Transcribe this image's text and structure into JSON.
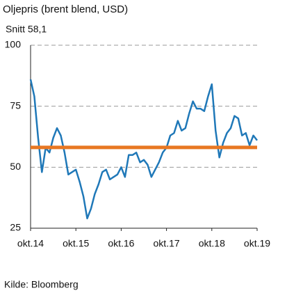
{
  "chart_data": {
    "type": "line",
    "title": "Oljepris (brent blend, USD)",
    "subtitle": "Snitt 58,1",
    "source": "Kilde: Bloomberg",
    "x": [
      "2014-10",
      "2014-11",
      "2014-12",
      "2015-01",
      "2015-02",
      "2015-03",
      "2015-04",
      "2015-05",
      "2015-06",
      "2015-07",
      "2015-08",
      "2015-09",
      "2015-10",
      "2015-11",
      "2015-12",
      "2016-01",
      "2016-02",
      "2016-03",
      "2016-04",
      "2016-05",
      "2016-06",
      "2016-07",
      "2016-08",
      "2016-09",
      "2016-10",
      "2016-11",
      "2016-12",
      "2017-01",
      "2017-02",
      "2017-03",
      "2017-04",
      "2017-05",
      "2017-06",
      "2017-07",
      "2017-08",
      "2017-09",
      "2017-10",
      "2017-11",
      "2017-12",
      "2018-01",
      "2018-02",
      "2018-03",
      "2018-04",
      "2018-05",
      "2018-06",
      "2018-07",
      "2018-08",
      "2018-09",
      "2018-10",
      "2018-11",
      "2018-12",
      "2019-01",
      "2019-02",
      "2019-03",
      "2019-04",
      "2019-05",
      "2019-06",
      "2019-07",
      "2019-08",
      "2019-09",
      "2019-10"
    ],
    "series": [
      {
        "name": "Brent",
        "color": "#1f78b8",
        "values": [
          86,
          79,
          62,
          48,
          58,
          56,
          62,
          66,
          63,
          56,
          47,
          48,
          49,
          44,
          38,
          29,
          33,
          39,
          43,
          48,
          49,
          45,
          46,
          47,
          50,
          46,
          55,
          55,
          56,
          52,
          53,
          51,
          46,
          49,
          52,
          56,
          58,
          63,
          64,
          69,
          65,
          66,
          72,
          77,
          74,
          74,
          73,
          79,
          84,
          65,
          54,
          60,
          64,
          66,
          71,
          70,
          63,
          64,
          59,
          63,
          61
        ]
      }
    ],
    "average": 58.1,
    "average_color": "#e87722",
    "ylim": [
      25,
      100
    ],
    "yticks": [
      25,
      50,
      75,
      100
    ],
    "xticks": [
      {
        "value": "2014-10",
        "label": "okt.14"
      },
      {
        "value": "2015-10",
        "label": "okt.15"
      },
      {
        "value": "2016-10",
        "label": "okt.16"
      },
      {
        "value": "2017-10",
        "label": "okt.17"
      },
      {
        "value": "2018-10",
        "label": "okt.18"
      },
      {
        "value": "2019-10",
        "label": "okt.19"
      }
    ],
    "grid": true
  }
}
